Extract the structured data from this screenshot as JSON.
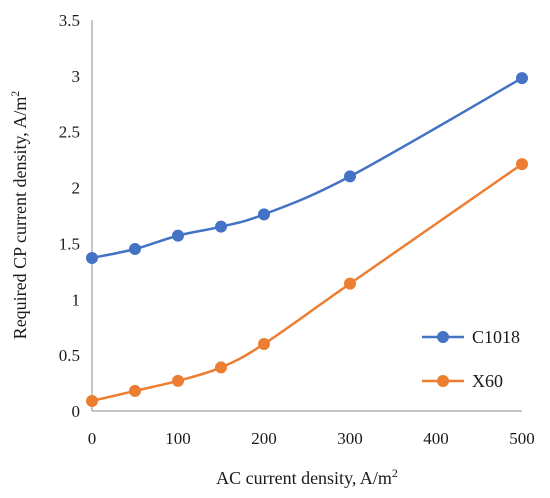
{
  "chart_data": {
    "type": "line",
    "x": [
      0,
      50,
      100,
      150,
      200,
      300,
      500
    ],
    "xlabel": "AC current density, A/m",
    "xlabel_sup": "2",
    "ylabel": "Required CP current density,  A/m",
    "ylabel_sup": "2",
    "xlim": [
      0,
      500
    ],
    "ylim": [
      0,
      3.5
    ],
    "x_ticks": [
      "0",
      "100",
      "200",
      "300",
      "400",
      "500"
    ],
    "y_ticks": [
      "0",
      "0.5",
      "1",
      "1.5",
      "2",
      "2.5",
      "3",
      "3.5"
    ],
    "grid": false,
    "legend_position": "bottom-right",
    "series": [
      {
        "name": "C1018",
        "color": "#4472C4",
        "values": [
          1.37,
          1.45,
          1.57,
          1.65,
          1.76,
          2.1,
          2.98
        ]
      },
      {
        "name": "X60",
        "color": "#ED7D31",
        "values": [
          0.09,
          0.18,
          0.27,
          0.39,
          0.6,
          1.14,
          2.21
        ]
      }
    ]
  }
}
